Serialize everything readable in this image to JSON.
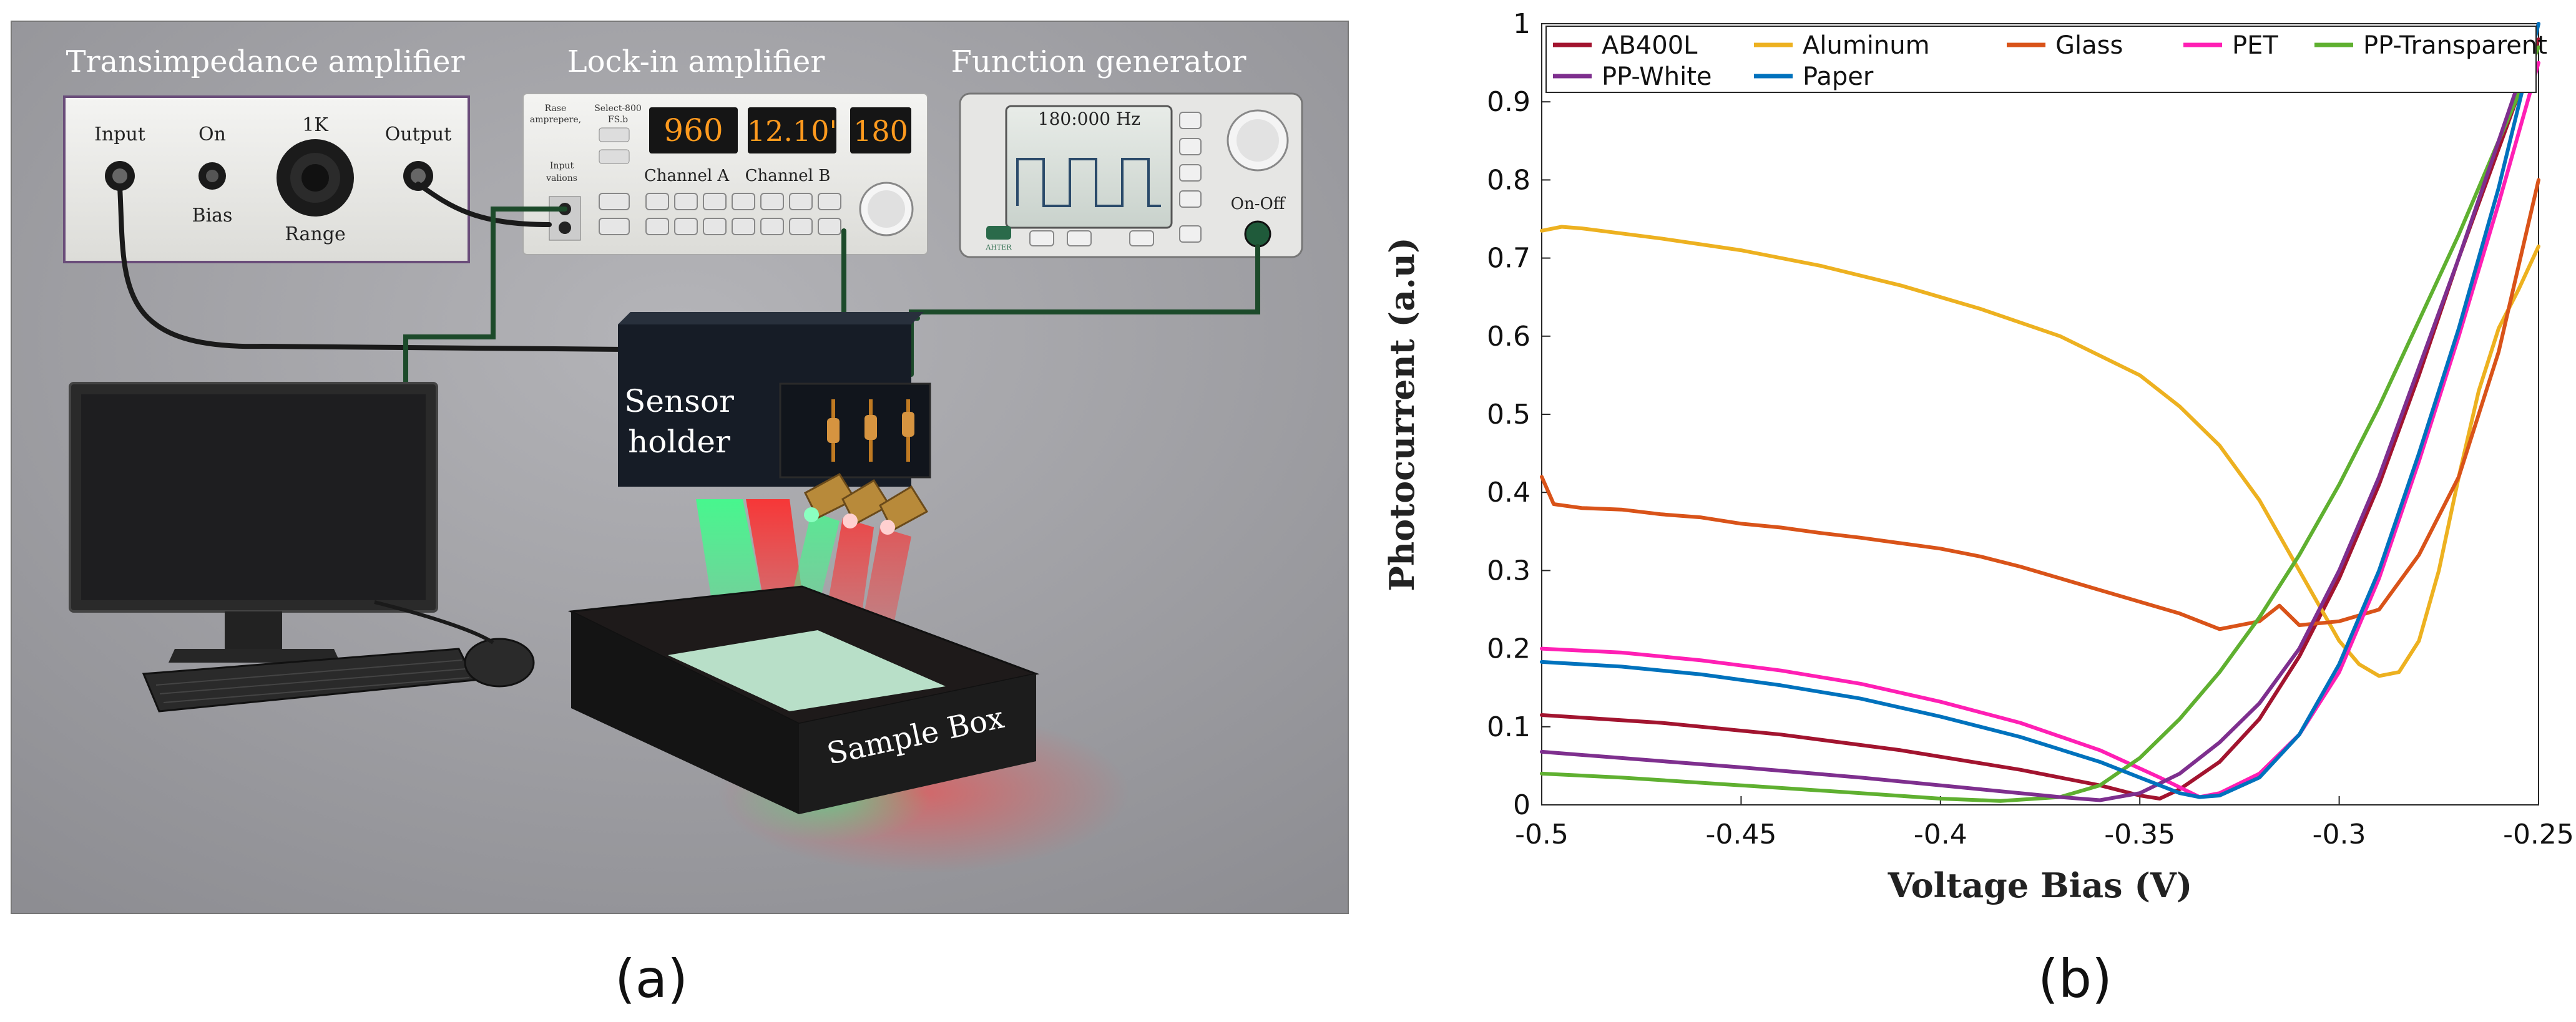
{
  "figure": {
    "label_a": "(a)",
    "label_b": "(b)"
  },
  "setup": {
    "transimpedance_title": "Transimpedance amplifier",
    "lockin_title": "Lock-in amplifier",
    "function_title": "Function generator",
    "tia_input": "Input",
    "tia_on": "On",
    "tia_bias": "Bias",
    "tia_range_value": "1K",
    "tia_range": "Range",
    "tia_output": "Output",
    "lockin_small_1": "Rase",
    "lockin_small_2": "amprepere,",
    "lockin_small_3": "Select-800",
    "lockin_small_4": "FS.b",
    "lockin_small_5": "Input",
    "lockin_small_6": "valions",
    "lockin_display_1": "960",
    "lockin_display_2": "12.10'",
    "lockin_display_3": "180",
    "lockin_channel_a": "Channel A",
    "lockin_channel_b": "Channel B",
    "fg_frequency": "180:000 Hz",
    "fg_onoff": "On-Off",
    "fg_small": "AHTER",
    "sensor_line1": "Sensor",
    "sensor_line2": "holder",
    "sample_box": "Sample Box"
  },
  "chart_data": {
    "type": "line",
    "xlabel": "Voltage Bias (V)",
    "ylabel": "Photocurrent (a.u)",
    "xlim": [
      -0.5,
      -0.25
    ],
    "ylim": [
      0,
      1
    ],
    "xticks": [
      "-0.5",
      "-0.45",
      "-0.4",
      "-0.35",
      "-0.3",
      "-0.25"
    ],
    "yticks": [
      "0",
      "0.1",
      "0.2",
      "0.3",
      "0.4",
      "0.5",
      "0.6",
      "0.7",
      "0.8",
      "0.9",
      "1"
    ],
    "legend_position": "top",
    "series": [
      {
        "name": "AB400L",
        "color": "#a2142f",
        "points": [
          [
            -0.5,
            0.115
          ],
          [
            -0.47,
            0.105
          ],
          [
            -0.44,
            0.09
          ],
          [
            -0.41,
            0.07
          ],
          [
            -0.38,
            0.045
          ],
          [
            -0.36,
            0.025
          ],
          [
            -0.35,
            0.012
          ],
          [
            -0.345,
            0.008
          ],
          [
            -0.34,
            0.02
          ],
          [
            -0.33,
            0.055
          ],
          [
            -0.32,
            0.11
          ],
          [
            -0.31,
            0.19
          ],
          [
            -0.3,
            0.29
          ],
          [
            -0.29,
            0.41
          ],
          [
            -0.28,
            0.55
          ],
          [
            -0.27,
            0.7
          ],
          [
            -0.26,
            0.84
          ],
          [
            -0.25,
            0.98
          ]
        ]
      },
      {
        "name": "Aluminum",
        "color": "#edb120",
        "points": [
          [
            -0.5,
            0.735
          ],
          [
            -0.495,
            0.74
          ],
          [
            -0.49,
            0.738
          ],
          [
            -0.47,
            0.725
          ],
          [
            -0.45,
            0.71
          ],
          [
            -0.43,
            0.69
          ],
          [
            -0.41,
            0.665
          ],
          [
            -0.39,
            0.635
          ],
          [
            -0.37,
            0.6
          ],
          [
            -0.35,
            0.55
          ],
          [
            -0.34,
            0.51
          ],
          [
            -0.33,
            0.46
          ],
          [
            -0.32,
            0.39
          ],
          [
            -0.31,
            0.3
          ],
          [
            -0.3,
            0.21
          ],
          [
            -0.295,
            0.18
          ],
          [
            -0.29,
            0.165
          ],
          [
            -0.285,
            0.17
          ],
          [
            -0.28,
            0.21
          ],
          [
            -0.275,
            0.3
          ],
          [
            -0.27,
            0.42
          ],
          [
            -0.265,
            0.53
          ],
          [
            -0.26,
            0.61
          ],
          [
            -0.255,
            0.66
          ],
          [
            -0.25,
            0.715
          ]
        ]
      },
      {
        "name": "Glass",
        "color": "#d95319",
        "points": [
          [
            -0.5,
            0.42
          ],
          [
            -0.497,
            0.385
          ],
          [
            -0.49,
            0.38
          ],
          [
            -0.48,
            0.378
          ],
          [
            -0.47,
            0.372
          ],
          [
            -0.46,
            0.368
          ],
          [
            -0.45,
            0.36
          ],
          [
            -0.44,
            0.355
          ],
          [
            -0.43,
            0.348
          ],
          [
            -0.42,
            0.342
          ],
          [
            -0.41,
            0.335
          ],
          [
            -0.4,
            0.328
          ],
          [
            -0.39,
            0.318
          ],
          [
            -0.38,
            0.305
          ],
          [
            -0.37,
            0.29
          ],
          [
            -0.36,
            0.275
          ],
          [
            -0.35,
            0.26
          ],
          [
            -0.34,
            0.245
          ],
          [
            -0.33,
            0.225
          ],
          [
            -0.32,
            0.235
          ],
          [
            -0.315,
            0.255
          ],
          [
            -0.31,
            0.23
          ],
          [
            -0.3,
            0.235
          ],
          [
            -0.29,
            0.25
          ],
          [
            -0.28,
            0.32
          ],
          [
            -0.27,
            0.42
          ],
          [
            -0.26,
            0.58
          ],
          [
            -0.25,
            0.8
          ]
        ]
      },
      {
        "name": "PET",
        "color": "#ff1fb4",
        "points": [
          [
            -0.5,
            0.2
          ],
          [
            -0.48,
            0.195
          ],
          [
            -0.46,
            0.185
          ],
          [
            -0.44,
            0.172
          ],
          [
            -0.42,
            0.155
          ],
          [
            -0.4,
            0.132
          ],
          [
            -0.38,
            0.105
          ],
          [
            -0.36,
            0.07
          ],
          [
            -0.345,
            0.035
          ],
          [
            -0.335,
            0.01
          ],
          [
            -0.33,
            0.015
          ],
          [
            -0.32,
            0.04
          ],
          [
            -0.31,
            0.09
          ],
          [
            -0.3,
            0.17
          ],
          [
            -0.29,
            0.29
          ],
          [
            -0.28,
            0.44
          ],
          [
            -0.27,
            0.6
          ],
          [
            -0.26,
            0.77
          ],
          [
            -0.25,
            0.95
          ]
        ]
      },
      {
        "name": "PP-Transparent",
        "color": "#5fb030",
        "points": [
          [
            -0.5,
            0.04
          ],
          [
            -0.48,
            0.035
          ],
          [
            -0.45,
            0.025
          ],
          [
            -0.42,
            0.015
          ],
          [
            -0.4,
            0.008
          ],
          [
            -0.385,
            0.005
          ],
          [
            -0.37,
            0.01
          ],
          [
            -0.36,
            0.025
          ],
          [
            -0.35,
            0.06
          ],
          [
            -0.34,
            0.11
          ],
          [
            -0.33,
            0.17
          ],
          [
            -0.32,
            0.24
          ],
          [
            -0.31,
            0.32
          ],
          [
            -0.3,
            0.41
          ],
          [
            -0.29,
            0.51
          ],
          [
            -0.28,
            0.62
          ],
          [
            -0.27,
            0.73
          ],
          [
            -0.26,
            0.85
          ],
          [
            -0.25,
            0.97
          ]
        ]
      },
      {
        "name": "PP-White",
        "color": "#7e2f8e",
        "points": [
          [
            -0.5,
            0.068
          ],
          [
            -0.48,
            0.06
          ],
          [
            -0.45,
            0.048
          ],
          [
            -0.42,
            0.035
          ],
          [
            -0.39,
            0.02
          ],
          [
            -0.37,
            0.01
          ],
          [
            -0.36,
            0.006
          ],
          [
            -0.35,
            0.015
          ],
          [
            -0.34,
            0.04
          ],
          [
            -0.33,
            0.08
          ],
          [
            -0.32,
            0.13
          ],
          [
            -0.31,
            0.2
          ],
          [
            -0.3,
            0.3
          ],
          [
            -0.29,
            0.42
          ],
          [
            -0.28,
            0.56
          ],
          [
            -0.27,
            0.7
          ],
          [
            -0.26,
            0.85
          ],
          [
            -0.25,
            1.0
          ]
        ]
      },
      {
        "name": "Paper",
        "color": "#0072bd",
        "points": [
          [
            -0.5,
            0.183
          ],
          [
            -0.48,
            0.177
          ],
          [
            -0.46,
            0.167
          ],
          [
            -0.44,
            0.153
          ],
          [
            -0.42,
            0.136
          ],
          [
            -0.4,
            0.113
          ],
          [
            -0.38,
            0.087
          ],
          [
            -0.36,
            0.055
          ],
          [
            -0.35,
            0.035
          ],
          [
            -0.34,
            0.015
          ],
          [
            -0.335,
            0.01
          ],
          [
            -0.33,
            0.012
          ],
          [
            -0.32,
            0.035
          ],
          [
            -0.31,
            0.09
          ],
          [
            -0.3,
            0.18
          ],
          [
            -0.29,
            0.3
          ],
          [
            -0.28,
            0.45
          ],
          [
            -0.27,
            0.61
          ],
          [
            -0.26,
            0.79
          ],
          [
            -0.25,
            1.0
          ]
        ]
      }
    ]
  }
}
